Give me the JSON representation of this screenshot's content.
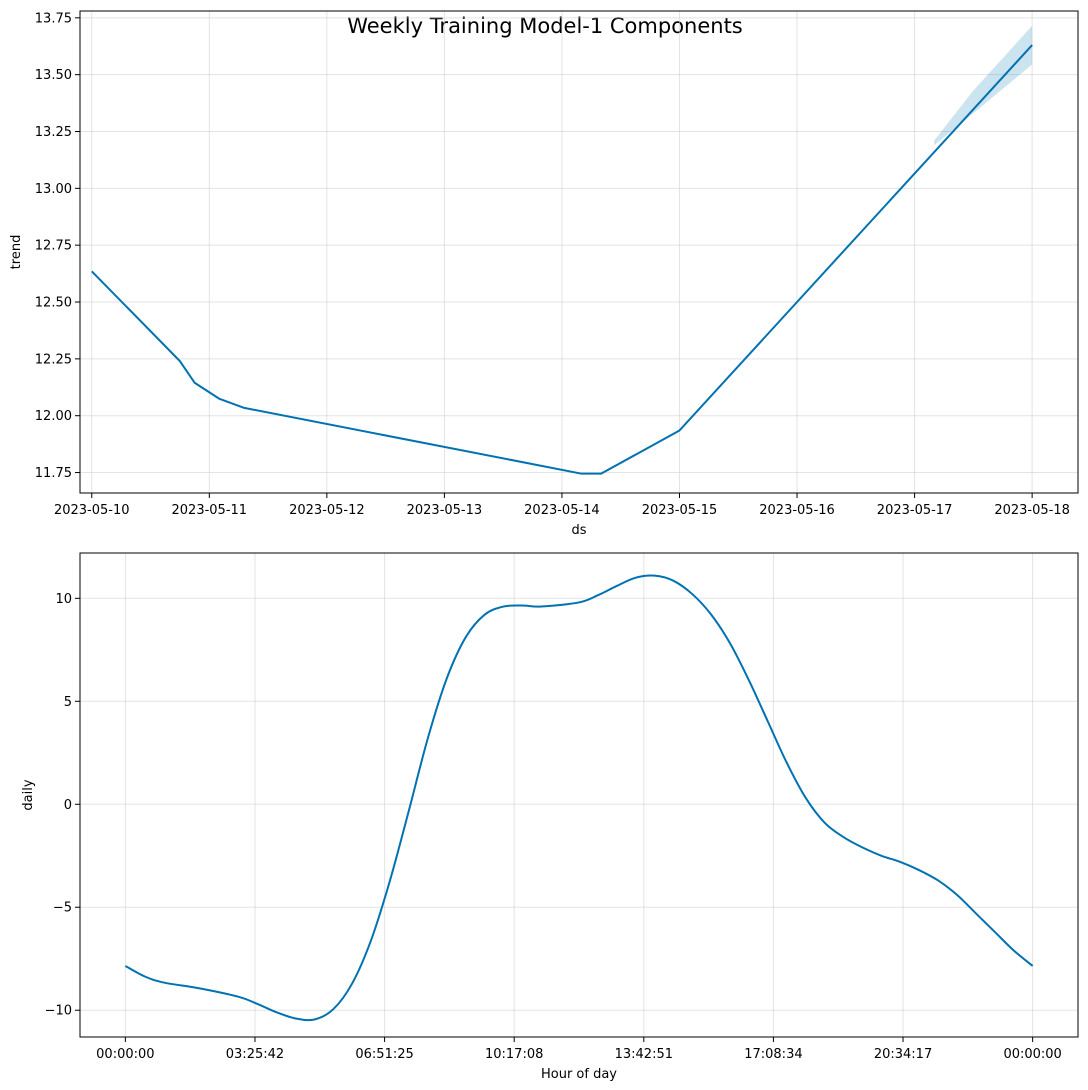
{
  "title": "Weekly Training Model-1 Components",
  "colors": {
    "line": "#0072B2",
    "band": "#0072B2",
    "grid": "#cccccc"
  },
  "chart_data": [
    {
      "type": "line",
      "xlabel": "ds",
      "ylabel": "trend",
      "x_ticks": [
        "2023-05-10",
        "2023-05-11",
        "2023-05-12",
        "2023-05-13",
        "2023-05-14",
        "2023-05-15",
        "2023-05-16",
        "2023-05-17",
        "2023-05-18"
      ],
      "y_ticks": [
        "11.75",
        "12.00",
        "12.25",
        "12.50",
        "12.75",
        "13.00",
        "13.25",
        "13.50",
        "13.75"
      ],
      "xlim": [
        "2023-05-09 21:36",
        "2023-05-18 09:22"
      ],
      "ylim": [
        11.66,
        13.78
      ],
      "grid": true,
      "series": [
        {
          "x": [
            "2023-05-10 00:00",
            "2023-05-10 18:00",
            "2023-05-10 21:00",
            "2023-05-11 02:00",
            "2023-05-11 07:00",
            "2023-05-14 04:00",
            "2023-05-14 08:00",
            "2023-05-14 16:00",
            "2023-05-15 00:00",
            "2023-05-18 00:00"
          ],
          "y": [
            12.635,
            12.24,
            12.145,
            12.075,
            12.035,
            11.745,
            11.745,
            11.84,
            11.935,
            13.63
          ]
        }
      ],
      "uncertainty": {
        "x": [
          "2023-05-17 04:00",
          "2023-05-17 12:00",
          "2023-05-18 00:00"
        ],
        "lower": [
          13.19,
          13.33,
          13.545
        ],
        "upper": [
          13.21,
          13.43,
          13.715
        ]
      }
    },
    {
      "type": "line",
      "xlabel": "Hour of day",
      "ylabel": "daily",
      "x_ticks": [
        "00:00:00",
        "03:25:42",
        "06:51:25",
        "10:17:08",
        "13:42:51",
        "17:08:34",
        "20:34:17",
        "00:00:00"
      ],
      "y_ticks": [
        "−10",
        "−5",
        "0",
        "5",
        "10"
      ],
      "xlim": [
        -1.2,
        25.2
      ],
      "ylim": [
        -11.3,
        12.2
      ],
      "grid": true,
      "series": [
        {
          "x": [
            0,
            0.5,
            1,
            2,
            3,
            3.5,
            4,
            4.5,
            5,
            5.5,
            6,
            6.5,
            7,
            7.5,
            8,
            8.5,
            9,
            9.5,
            10,
            10.5,
            11,
            12,
            12.5,
            13,
            13.5,
            14,
            14.5,
            15,
            15.5,
            16,
            16.5,
            17,
            17.5,
            18,
            18.5,
            19,
            19.5,
            20,
            20.5,
            21,
            21.5,
            22,
            22.5,
            23,
            23.5,
            24
          ],
          "y": [
            -7.85,
            -8.35,
            -8.65,
            -8.95,
            -9.35,
            -9.7,
            -10.1,
            -10.4,
            -10.45,
            -9.95,
            -8.7,
            -6.6,
            -3.7,
            -0.3,
            3.2,
            6.1,
            8.1,
            9.2,
            9.6,
            9.65,
            9.6,
            9.8,
            10.15,
            10.6,
            11.0,
            11.1,
            10.85,
            10.2,
            9.2,
            7.8,
            6.0,
            4.0,
            2.0,
            0.3,
            -0.9,
            -1.6,
            -2.1,
            -2.5,
            -2.8,
            -3.2,
            -3.7,
            -4.4,
            -5.3,
            -6.2,
            -7.1,
            -7.85
          ]
        }
      ]
    }
  ]
}
